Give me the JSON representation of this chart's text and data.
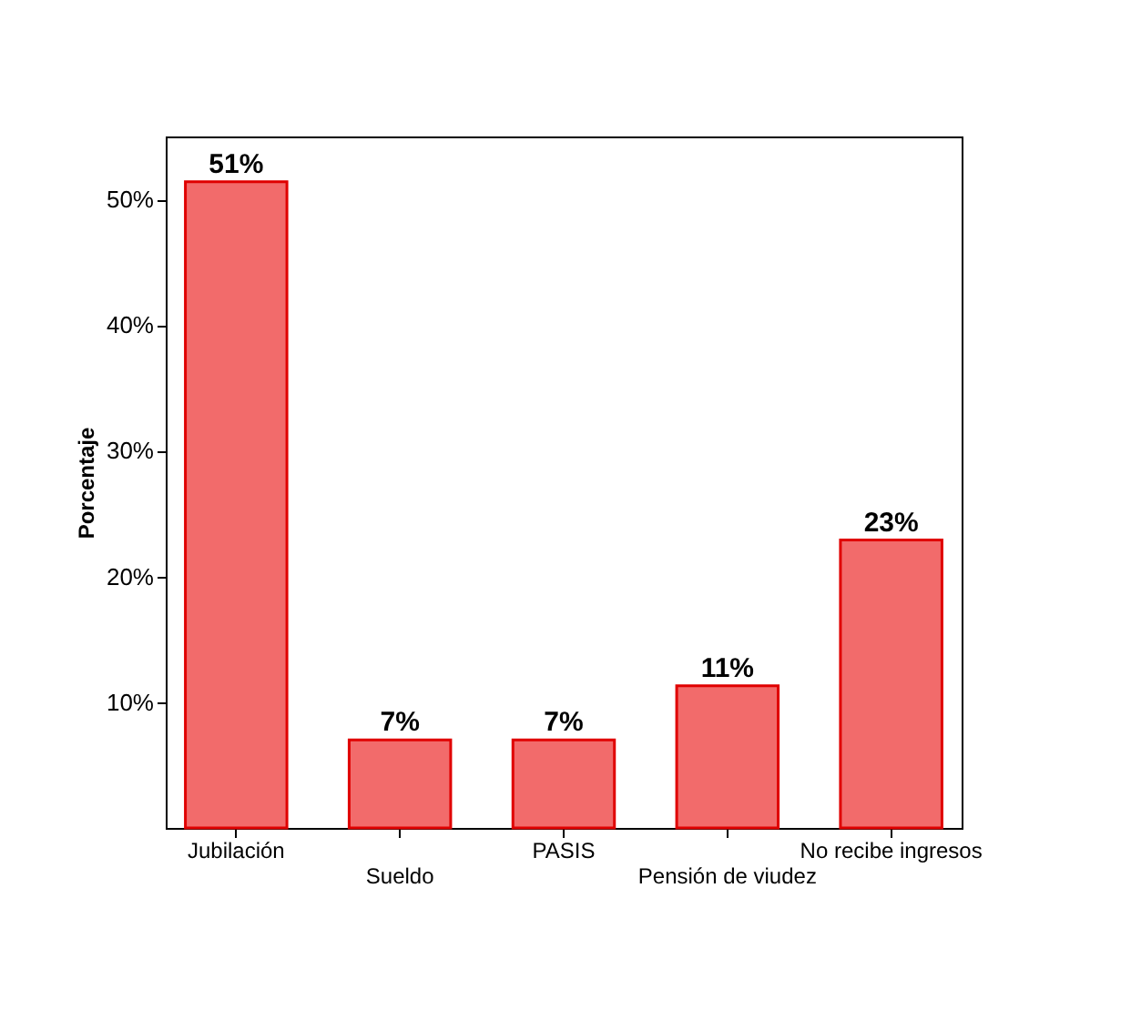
{
  "chart_data": {
    "type": "bar",
    "ylabel": "Porcentaje",
    "categories": [
      "Jubilación",
      "Sueldo",
      "PASIS",
      "Pensión de viudez",
      "No recibe ingresos"
    ],
    "values": [
      51.4,
      7.0,
      7.0,
      11.3,
      22.9
    ],
    "value_labels": [
      "51%",
      "7%",
      "7%",
      "11%",
      "23%"
    ],
    "color": "#f26b6b",
    "ylim": [
      0,
      55
    ],
    "yticks": [
      {
        "value": 10,
        "label": "10%"
      },
      {
        "value": 20,
        "label": "20%"
      },
      {
        "value": 30,
        "label": "30%"
      },
      {
        "value": 40,
        "label": "40%"
      },
      {
        "value": 50,
        "label": "50%"
      }
    ],
    "grid": false
  }
}
